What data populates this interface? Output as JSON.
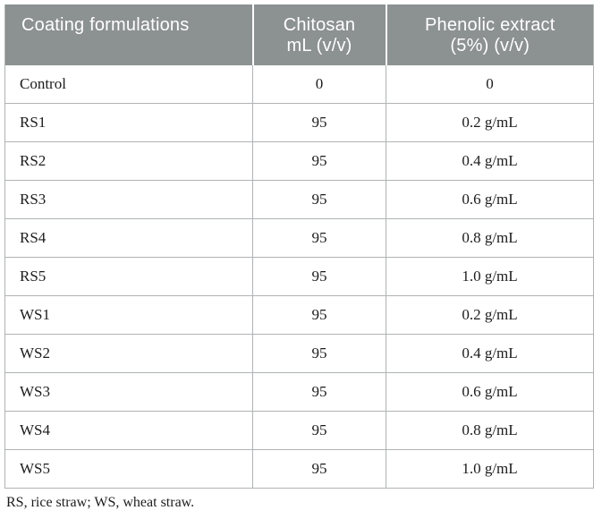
{
  "table": {
    "columns": [
      {
        "id": "formulation",
        "lines": [
          "Coating formulations"
        ],
        "align": "left"
      },
      {
        "id": "chitosan",
        "lines": [
          "Chitosan",
          "mL (v/v)"
        ],
        "align": "center"
      },
      {
        "id": "phenolic",
        "lines": [
          "Phenolic extract",
          "(5%) (v/v)"
        ],
        "align": "center"
      }
    ],
    "rows": [
      {
        "formulation": "Control",
        "chitosan": "0",
        "phenolic": "0"
      },
      {
        "formulation": "RS1",
        "chitosan": "95",
        "phenolic": "0.2 g/mL"
      },
      {
        "formulation": "RS2",
        "chitosan": "95",
        "phenolic": "0.4 g/mL"
      },
      {
        "formulation": "RS3",
        "chitosan": "95",
        "phenolic": "0.6 g/mL"
      },
      {
        "formulation": "RS4",
        "chitosan": "95",
        "phenolic": "0.8 g/mL"
      },
      {
        "formulation": "RS5",
        "chitosan": "95",
        "phenolic": "1.0 g/mL"
      },
      {
        "formulation": "WS1",
        "chitosan": "95",
        "phenolic": "0.2 g/mL"
      },
      {
        "formulation": "WS2",
        "chitosan": "95",
        "phenolic": "0.4 g/mL"
      },
      {
        "formulation": "WS3",
        "chitosan": "95",
        "phenolic": "0.6 g/mL"
      },
      {
        "formulation": "WS4",
        "chitosan": "95",
        "phenolic": "0.8 g/mL"
      },
      {
        "formulation": "WS5",
        "chitosan": "95",
        "phenolic": "1.0 g/mL"
      }
    ],
    "footnote": "RS, rice straw; WS, wheat straw."
  },
  "colors": {
    "header_bg": "#8c9192",
    "header_text": "#ffffff",
    "border": "#b0b3b4",
    "body_text": "#1c1c1c",
    "page_bg": "#ffffff"
  }
}
